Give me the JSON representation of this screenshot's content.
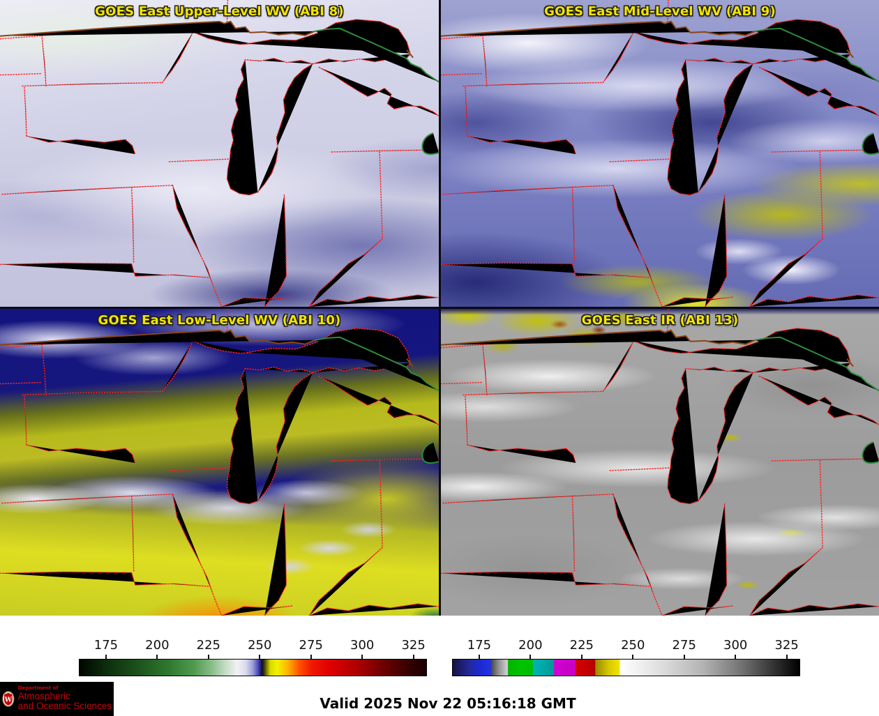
{
  "panels": [
    {
      "id": "abi8",
      "title": "GOES East Upper-Level WV (ABI 8)"
    },
    {
      "id": "abi9",
      "title": "GOES East Mid-Level WV (ABI 9)"
    },
    {
      "id": "abi10",
      "title": "GOES East Low-Level WV (ABI 10)"
    },
    {
      "id": "abi13",
      "title": "GOES East IR (ABI 13)"
    }
  ],
  "title_color": "#f2e400",
  "colorbars": [
    {
      "id": "wv-colorbar",
      "ticks": [
        "175",
        "200",
        "225",
        "250",
        "275",
        "300",
        "325"
      ],
      "gradient": [
        [
          "0",
          "#000600"
        ],
        [
          "8",
          "#0d2f0d"
        ],
        [
          "17",
          "#1d521d"
        ],
        [
          "26",
          "#2f7a2f"
        ],
        [
          "33",
          "#4f9a4f"
        ],
        [
          "38",
          "#87bc87"
        ],
        [
          "42",
          "#c3dcc3"
        ],
        [
          "45.5",
          "#f2f2f2"
        ],
        [
          "48",
          "#d9d9ee"
        ],
        [
          "50",
          "#9b9bd8"
        ],
        [
          "51.5",
          "#4a4ab8"
        ],
        [
          "52.6",
          "#0a0a50"
        ],
        [
          "53.1",
          "#2d2d00"
        ],
        [
          "55",
          "#d8d800"
        ],
        [
          "57",
          "#f2f200"
        ],
        [
          "60",
          "#ffb400"
        ],
        [
          "63.5",
          "#ff5000"
        ],
        [
          "67",
          "#f01800"
        ],
        [
          "72",
          "#e00000"
        ],
        [
          "80",
          "#ad0000"
        ],
        [
          "88",
          "#6a0000"
        ],
        [
          "96",
          "#2e0000"
        ],
        [
          "100",
          "#1c0000"
        ]
      ]
    },
    {
      "id": "ir-colorbar",
      "ticks": [
        "175",
        "200",
        "225",
        "250",
        "275",
        "300",
        "325"
      ],
      "gradient": [
        [
          "0",
          "#191145"
        ],
        [
          "5",
          "#222a9e"
        ],
        [
          "8",
          "#1b2ad4"
        ],
        [
          "11",
          "#2233e0"
        ],
        [
          "11.2",
          "#4a4a4a"
        ],
        [
          "13",
          "#8a8a8a"
        ],
        [
          "15.8",
          "#d2d2d2"
        ],
        [
          "16",
          "#00b400"
        ],
        [
          "20",
          "#00c300"
        ],
        [
          "23",
          "#00bc00"
        ],
        [
          "23.2",
          "#00b4b4"
        ],
        [
          "26",
          "#00a8a8"
        ],
        [
          "29.1",
          "#009898"
        ],
        [
          "29.3",
          "#d400d4"
        ],
        [
          "33",
          "#c800c8"
        ],
        [
          "35.2",
          "#cc00cc"
        ],
        [
          "35.4",
          "#d40000"
        ],
        [
          "39",
          "#c40000"
        ],
        [
          "41",
          "#b40000"
        ],
        [
          "41.2",
          "#9a8a00"
        ],
        [
          "45",
          "#d8c800"
        ],
        [
          "48",
          "#f0e200"
        ],
        [
          "48.4",
          "#ffffff"
        ],
        [
          "60",
          "#dedede"
        ],
        [
          "72",
          "#b4b4b4"
        ],
        [
          "84",
          "#6e6e6e"
        ],
        [
          "100",
          "#000000"
        ]
      ]
    }
  ],
  "footer": {
    "valid_text": "Valid 2025 Nov 22 05:16:18 GMT"
  },
  "logo": {
    "department": "Department of",
    "line1": "Atmospheric",
    "line2": "and Oceanic Sciences",
    "monogram": "W",
    "text_color": "#c5050c",
    "background": "#000000"
  },
  "map_colors": {
    "state_border": "#ff2020",
    "international_border": "#8a4513",
    "water_boundary": "#2e8b3c"
  }
}
